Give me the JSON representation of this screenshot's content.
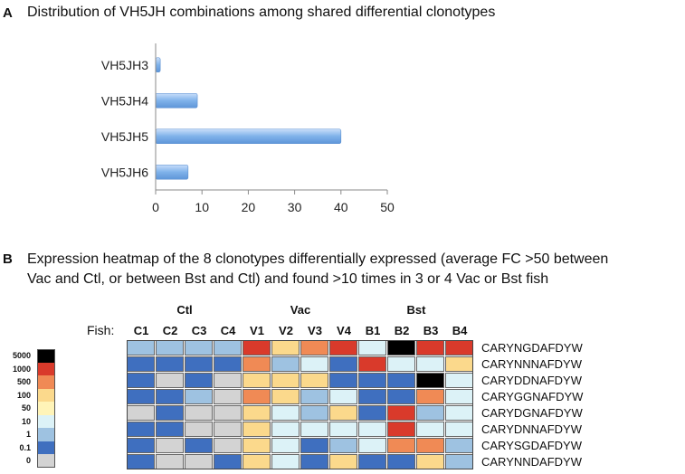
{
  "panel_a": {
    "letter": "A",
    "title": "Distribution of VH5JH combinations among shared differential clonotypes"
  },
  "panel_b": {
    "letter": "B",
    "title_line1": "Expression heatmap of the 8 clonotypes differentially  expressed (average FC >50 between",
    "title_line2": "Vac and Ctl, or between Bst and Ctl) and found >10 times in 3 or 4 Vac or Bst fish",
    "fish_label": "Fish:"
  },
  "chart_data": [
    {
      "type": "bar",
      "orientation": "horizontal",
      "categories": [
        "VH5JH3",
        "VH5JH4",
        "VH5JH5",
        "VH5JH6"
      ],
      "values": [
        1,
        9,
        40,
        7
      ],
      "xlim": [
        0,
        50
      ],
      "xticks": [
        "0",
        "10",
        "20",
        "30",
        "40",
        "50"
      ],
      "bar_color": "#7fb2ea"
    },
    {
      "type": "heatmap",
      "groups": [
        {
          "name": "Ctl",
          "span": [
            0,
            3
          ]
        },
        {
          "name": "Vac",
          "span": [
            4,
            7
          ]
        },
        {
          "name": "Bst",
          "span": [
            8,
            11
          ]
        }
      ],
      "columns": [
        "C1",
        "C2",
        "C3",
        "C4",
        "V1",
        "V2",
        "V3",
        "V4",
        "B1",
        "B2",
        "B3",
        "B4"
      ],
      "rows": [
        "CARYNGDAFDYW",
        "CARYNNNAFDYW",
        "CARYDDNAFDYW",
        "CARYGGNAFDYW",
        "CARYDGNAFDYW",
        "CARYDNNAFDYW",
        "CARYSGDAFDYW",
        "CARYNNDAFDYW"
      ],
      "legend": {
        "levels": [
          "5000",
          "1000",
          "500",
          "100",
          "50",
          "10",
          "1",
          "0.1",
          "0"
        ],
        "colors": [
          "#000000",
          "#d93a2b",
          "#f08a55",
          "#fbd98c",
          "#fff4b8",
          "#dcf2f7",
          "#9ec2e1",
          "#3f6fbf",
          "#d3d3d3"
        ]
      },
      "values": [
        [
          "1",
          "1",
          "1",
          "1",
          "1000",
          "100",
          "500",
          "1000",
          "10",
          "5000",
          "1000",
          "1000"
        ],
        [
          "0.1",
          "0.1",
          "0.1",
          "0.1",
          "500",
          "1",
          "10",
          "0.1",
          "1000",
          "10",
          "10",
          "100"
        ],
        [
          "0.1",
          "0",
          "0.1",
          "0",
          "100",
          "100",
          "100",
          "0.1",
          "0.1",
          "0.1",
          "5000",
          "10"
        ],
        [
          "0.1",
          "0.1",
          "1",
          "0",
          "500",
          "100",
          "1",
          "10",
          "0.1",
          "0.1",
          "500",
          "10"
        ],
        [
          "0",
          "0.1",
          "0",
          "0",
          "100",
          "10",
          "1",
          "100",
          "0.1",
          "1000",
          "1",
          "10"
        ],
        [
          "0.1",
          "0.1",
          "0",
          "0",
          "100",
          "10",
          "10",
          "10",
          "10",
          "1000",
          "10",
          "10"
        ],
        [
          "0.1",
          "0",
          "0.1",
          "0",
          "100",
          "10",
          "0.1",
          "1",
          "10",
          "500",
          "500",
          "1"
        ],
        [
          "0.1",
          "0",
          "0",
          "0.1",
          "100",
          "10",
          "0.1",
          "100",
          "0.1",
          "0.1",
          "100",
          "1"
        ]
      ]
    }
  ]
}
